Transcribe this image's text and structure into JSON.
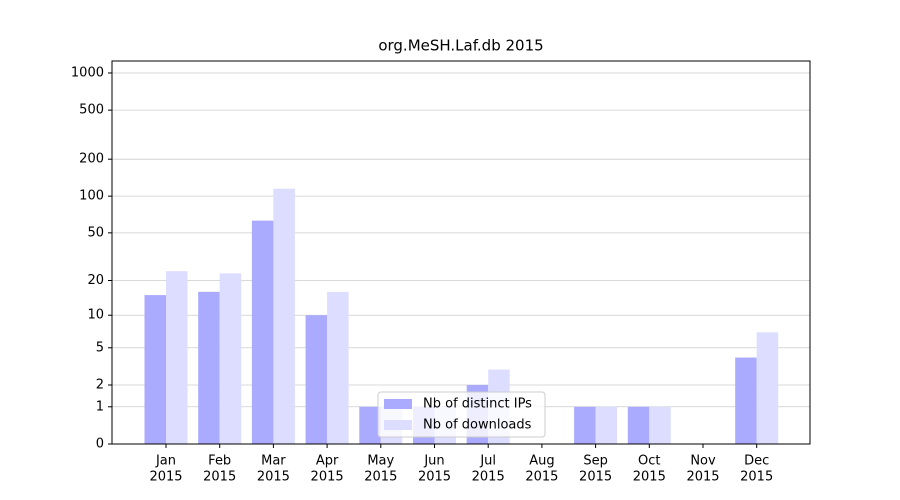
{
  "chart_data": {
    "type": "bar",
    "title": "org.MeSH.Laf.db 2015",
    "categories": [
      [
        "Jan",
        "2015"
      ],
      [
        "Feb",
        "2015"
      ],
      [
        "Mar",
        "2015"
      ],
      [
        "Apr",
        "2015"
      ],
      [
        "May",
        "2015"
      ],
      [
        "Jun",
        "2015"
      ],
      [
        "Jul",
        "2015"
      ],
      [
        "Aug",
        "2015"
      ],
      [
        "Sep",
        "2015"
      ],
      [
        "Oct",
        "2015"
      ],
      [
        "Nov",
        "2015"
      ],
      [
        "Dec",
        "2015"
      ]
    ],
    "series": [
      {
        "name": "Nb of distinct IPs",
        "color": "#aaaaff",
        "values": [
          15,
          16,
          63,
          10,
          1,
          1,
          2,
          0,
          1,
          1,
          0,
          4
        ]
      },
      {
        "name": "Nb of downloads",
        "color": "#ddddff",
        "values": [
          24,
          23,
          115,
          16,
          1,
          1,
          3,
          0,
          1,
          1,
          0,
          7
        ]
      }
    ],
    "yscale": "log1p",
    "ylim": [
      0,
      1250
    ],
    "yticks": [
      0,
      1,
      2,
      5,
      10,
      20,
      50,
      100,
      200,
      500,
      1000
    ],
    "grid": true,
    "legend": "lower center"
  }
}
